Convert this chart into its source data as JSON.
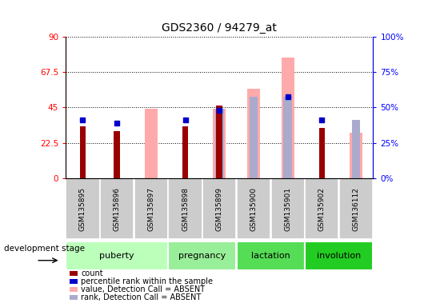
{
  "title": "GDS2360 / 94279_at",
  "samples": [
    "GSM135895",
    "GSM135896",
    "GSM135897",
    "GSM135898",
    "GSM135899",
    "GSM135900",
    "GSM135901",
    "GSM135902",
    "GSM136112"
  ],
  "count_values": [
    33,
    30,
    null,
    33,
    46,
    null,
    null,
    32,
    null
  ],
  "percentile_rank_values": [
    37,
    35,
    null,
    37,
    43,
    null,
    52,
    37,
    null
  ],
  "absent_value_values": [
    null,
    null,
    44,
    null,
    44,
    57,
    77,
    null,
    29
  ],
  "absent_rank_values": [
    null,
    null,
    null,
    null,
    44,
    52,
    52,
    null,
    37
  ],
  "ylim_left": [
    0,
    90
  ],
  "ylim_right": [
    0,
    100
  ],
  "yticks_left": [
    0,
    22.5,
    45,
    67.5,
    90
  ],
  "yticks_right": [
    0,
    25,
    50,
    75,
    100
  ],
  "ytick_labels_left": [
    "0",
    "22.5",
    "45",
    "67.5",
    "90"
  ],
  "ytick_labels_right": [
    "0%",
    "25%",
    "50%",
    "75%",
    "100%"
  ],
  "stage_colors": [
    "#bbffbb",
    "#99ee99",
    "#55dd55",
    "#22cc22"
  ],
  "stage_defs": [
    {
      "label": "puberty",
      "cols": [
        0,
        1,
        2
      ]
    },
    {
      "label": "pregnancy",
      "cols": [
        3,
        4
      ]
    },
    {
      "label": "lactation",
      "cols": [
        5,
        6
      ]
    },
    {
      "label": "involution",
      "cols": [
        7,
        8
      ]
    }
  ],
  "count_color": "#990000",
  "percentile_color": "#0000cc",
  "absent_value_color": "#ffaaaa",
  "absent_rank_color": "#aaaacc",
  "legend_items": [
    {
      "label": "count",
      "color": "#990000"
    },
    {
      "label": "percentile rank within the sample",
      "color": "#0000cc"
    },
    {
      "label": "value, Detection Call = ABSENT",
      "color": "#ffaaaa"
    },
    {
      "label": "rank, Detection Call = ABSENT",
      "color": "#aaaacc"
    }
  ],
  "stage_label": "development stage",
  "figsize": [
    5.3,
    3.84
  ],
  "dpi": 100
}
